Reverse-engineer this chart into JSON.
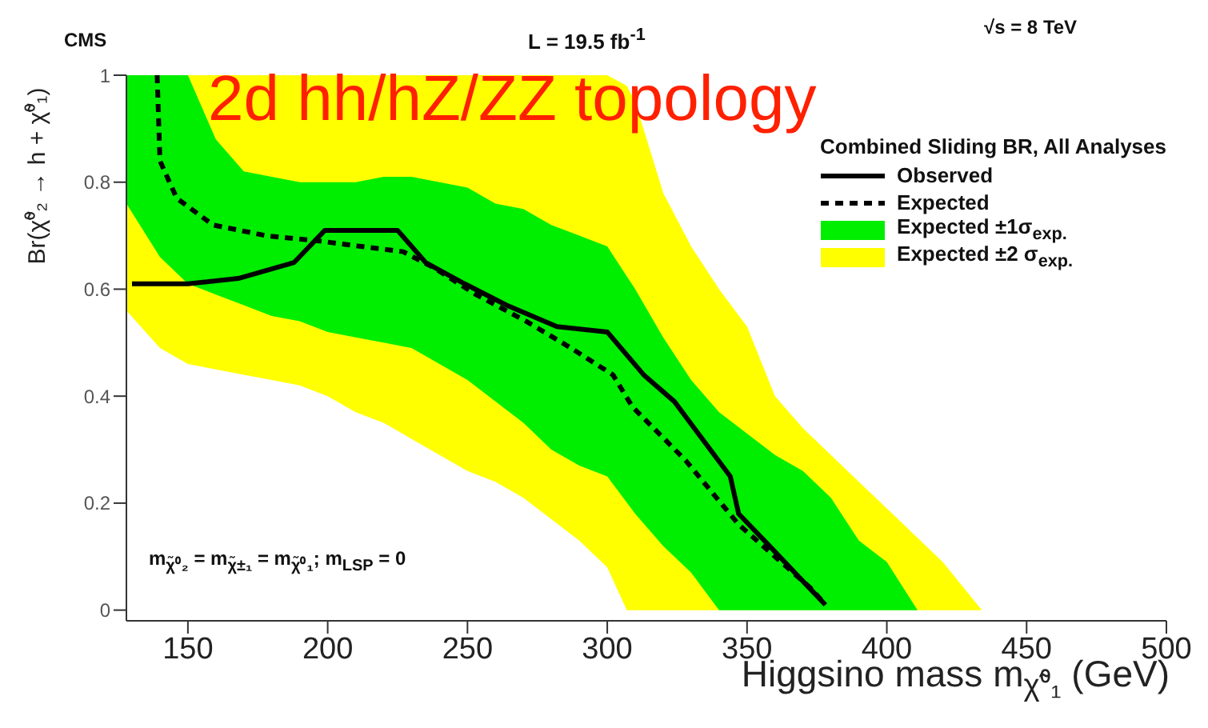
{
  "chart_data": {
    "type": "line",
    "title": "2d hh/hZ/ZZ topology",
    "legend_title": "Combined Sliding BR, All Analyses",
    "xlabel": "Higgsino mass m$_{χ̃⁰₁}$ (GeV)",
    "ylabel": "Br(χ̃⁰₂ → h + χ̃⁰₁)",
    "annotations": [
      "CMS",
      "L = 19.5 fb$^{-1}$",
      "√s = 8 TeV",
      "m$_{χ̃⁰₂}$ = m$_{χ̃±₁}$ = m$_{χ̃⁰₁}$; m$_{LSP}$ = 0"
    ],
    "xlim": [
      128,
      500
    ],
    "xticks": [
      150,
      200,
      250,
      300,
      350,
      400,
      450,
      500
    ],
    "ylim": [
      -0.02,
      1
    ],
    "yticks": [
      0,
      0.2,
      0.4,
      0.6,
      0.8,
      1
    ],
    "legend": "top right",
    "marker": "none",
    "series": [
      {
        "name": "Observed",
        "type": "line",
        "line_style": "solid",
        "color": "#000000",
        "x": [
          130,
          150,
          168,
          188,
          199,
          225,
          235,
          249,
          264,
          282,
          300,
          313,
          324,
          344,
          347,
          358,
          378
        ],
        "values": [
          0.61,
          0.61,
          0.62,
          0.65,
          0.71,
          0.71,
          0.65,
          0.61,
          0.57,
          0.53,
          0.52,
          0.44,
          0.39,
          0.25,
          0.18,
          0.12,
          0.01
        ]
      },
      {
        "name": "Expected",
        "type": "line",
        "line_style": "dashed",
        "color": "#000000",
        "x": [
          139,
          140,
          146,
          159,
          178,
          197,
          227,
          238,
          253,
          271,
          287,
          302,
          309,
          328,
          347,
          373,
          378
        ],
        "values": [
          1,
          0.84,
          0.77,
          0.72,
          0.7,
          0.69,
          0.67,
          0.64,
          0.59,
          0.54,
          0.49,
          0.44,
          0.38,
          0.28,
          0.16,
          0.04,
          0.01
        ]
      },
      {
        "name": "Expected ±1σ$_{exp.}$",
        "type": "area",
        "color": "#00ee00",
        "x": [
          128,
          140,
          150,
          160,
          170,
          180,
          190,
          200,
          210,
          220,
          230,
          240,
          250,
          260,
          270,
          280,
          290,
          300,
          310,
          320,
          330,
          340,
          350,
          360,
          370,
          380,
          390,
          400,
          411
        ],
        "values": [
          null,
          null,
          null,
          null,
          null,
          null,
          null,
          null,
          null,
          null,
          null,
          null,
          null,
          null,
          null,
          null,
          null,
          null,
          null,
          null,
          null,
          null,
          null,
          null,
          null,
          null,
          null,
          null,
          null
        ],
        "lower": [
          0.76,
          0.66,
          0.61,
          0.59,
          0.57,
          0.55,
          0.54,
          0.52,
          0.51,
          0.5,
          0.49,
          0.46,
          0.43,
          0.39,
          0.35,
          0.3,
          0.27,
          0.25,
          0.18,
          0.12,
          0.07,
          0,
          0,
          0,
          0,
          0,
          0,
          0,
          0
        ],
        "upper": [
          1,
          1,
          1,
          0.88,
          0.82,
          0.81,
          0.8,
          0.8,
          0.8,
          0.81,
          0.81,
          0.8,
          0.79,
          0.76,
          0.75,
          0.72,
          0.7,
          0.68,
          0.6,
          0.51,
          0.43,
          0.37,
          0.33,
          0.29,
          0.26,
          0.21,
          0.13,
          0.09,
          0
        ]
      },
      {
        "name": "Expected ±2 σ$_{exp.}$",
        "type": "area",
        "color": "#ffff00",
        "x": [
          128,
          140,
          150,
          160,
          170,
          180,
          190,
          200,
          210,
          220,
          230,
          240,
          250,
          260,
          270,
          280,
          290,
          300,
          307,
          310,
          320,
          330,
          340,
          350,
          360,
          370,
          380,
          390,
          400,
          410,
          420,
          434
        ],
        "values": [
          null,
          null,
          null,
          null,
          null,
          null,
          null,
          null,
          null,
          null,
          null,
          null,
          null,
          null,
          null,
          null,
          null,
          null,
          null,
          null,
          null,
          null,
          null,
          null,
          null,
          null,
          null,
          null,
          null,
          null,
          null,
          null
        ],
        "lower": [
          0.56,
          0.49,
          0.46,
          0.45,
          0.44,
          0.43,
          0.42,
          0.4,
          0.37,
          0.35,
          0.32,
          0.29,
          0.26,
          0.24,
          0.21,
          0.17,
          0.13,
          0.08,
          0,
          0,
          0,
          0,
          0,
          0,
          0,
          0,
          0,
          0,
          0,
          0,
          0,
          0
        ],
        "upper": [
          1,
          1,
          1,
          1,
          1,
          1,
          1,
          1,
          1,
          1,
          1,
          1,
          1,
          1,
          1,
          1,
          1,
          1,
          0.98,
          0.95,
          0.78,
          0.68,
          0.6,
          0.53,
          0.4,
          0.34,
          0.29,
          0.24,
          0.19,
          0.14,
          0.09,
          0
        ]
      }
    ]
  }
}
